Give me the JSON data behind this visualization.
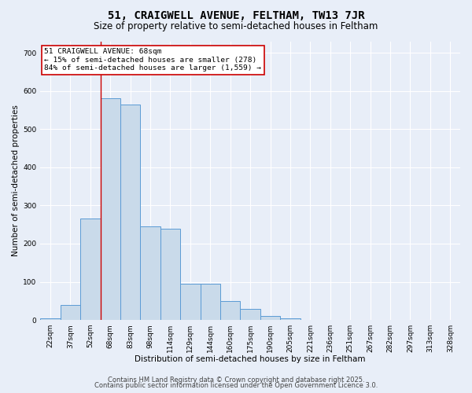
{
  "title": "51, CRAIGWELL AVENUE, FELTHAM, TW13 7JR",
  "subtitle": "Size of property relative to semi-detached houses in Feltham",
  "xlabel": "Distribution of semi-detached houses by size in Feltham",
  "ylabel": "Number of semi-detached properties",
  "categories": [
    "22sqm",
    "37sqm",
    "52sqm",
    "68sqm",
    "83sqm",
    "98sqm",
    "114sqm",
    "129sqm",
    "144sqm",
    "160sqm",
    "175sqm",
    "190sqm",
    "205sqm",
    "221sqm",
    "236sqm",
    "251sqm",
    "267sqm",
    "282sqm",
    "297sqm",
    "313sqm",
    "328sqm"
  ],
  "values": [
    5,
    40,
    265,
    580,
    565,
    245,
    240,
    95,
    95,
    50,
    30,
    10,
    5,
    0,
    0,
    0,
    0,
    0,
    0,
    0,
    0
  ],
  "bar_color": "#c9daea",
  "bar_edge_color": "#5b9bd5",
  "highlight_index": 3,
  "highlight_line_color": "#cc0000",
  "annotation_text": "51 CRAIGWELL AVENUE: 68sqm\n← 15% of semi-detached houses are smaller (278)\n84% of semi-detached houses are larger (1,559) →",
  "annotation_box_color": "#ffffff",
  "annotation_box_edge": "#cc0000",
  "ylim": [
    0,
    730
  ],
  "yticks": [
    0,
    100,
    200,
    300,
    400,
    500,
    600,
    700
  ],
  "footer1": "Contains HM Land Registry data © Crown copyright and database right 2025.",
  "footer2": "Contains public sector information licensed under the Open Government Licence 3.0.",
  "bg_color": "#e8eef8",
  "plot_bg_color": "#e8eef8",
  "title_fontsize": 10,
  "subtitle_fontsize": 8.5,
  "axis_label_fontsize": 7.5,
  "tick_fontsize": 6.5,
  "footer_fontsize": 6
}
